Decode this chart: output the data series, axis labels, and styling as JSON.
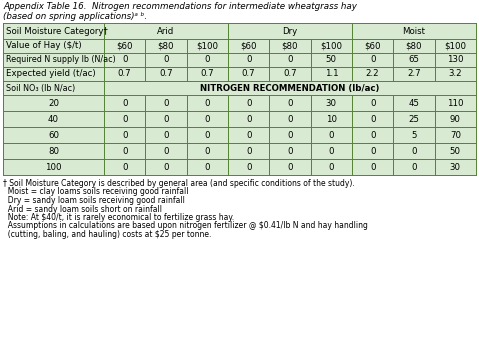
{
  "title_line1": "Appendix Table 16.  Nitrogen recommendations for intermediate wheatgrass hay",
  "title_line2": "(based on spring applications)ᵃ ᵇ.",
  "col_headers_row1": [
    "Soil Moisture Category†",
    "Arid",
    "Dry",
    "Moist"
  ],
  "col_headers_row2": [
    "Value of Hay ($/t)",
    "$60",
    "$80",
    "$100",
    "$60",
    "$80",
    "$100",
    "$60",
    "$80",
    "$100"
  ],
  "row_req_n": [
    "Required N supply lb (N/ac)",
    "0",
    "0",
    "0",
    "0",
    "0",
    "50",
    "0",
    "65",
    "130"
  ],
  "row_exp_yield": [
    "Expected yield (t/ac)",
    "0.7",
    "0.7",
    "0.7",
    "0.7",
    "0.7",
    "1.1",
    "2.2",
    "2.7",
    "3.2"
  ],
  "row_soil_no3_label": "Soil NO₃ (lb N/ac)",
  "row_nitrogen_rec": "NITROGEN RECOMMENDATION (lb/ac)",
  "data_rows": [
    [
      "20",
      "0",
      "0",
      "0",
      "0",
      "0",
      "30",
      "0",
      "45",
      "110"
    ],
    [
      "40",
      "0",
      "0",
      "0",
      "0",
      "0",
      "10",
      "0",
      "25",
      "90"
    ],
    [
      "60",
      "0",
      "0",
      "0",
      "0",
      "0",
      "0",
      "0",
      "5",
      "70"
    ],
    [
      "80",
      "0",
      "0",
      "0",
      "0",
      "0",
      "0",
      "0",
      "0",
      "50"
    ],
    [
      "100",
      "0",
      "0",
      "0",
      "0",
      "0",
      "0",
      "0",
      "0",
      "30"
    ]
  ],
  "footnote1": "† Soil Moisture Category is described by general area (and specific conditions of the study).",
  "footnote2": "  Moist = clay loams soils receiving good rainfall",
  "footnote3": "  Dry = sandy loam soils receiving good rainfall",
  "footnote4": "  Arid = sandy loam soils short on rainfall",
  "footnote5": "  Note: At $40/t, it is rarely economical to fertilize grass hay.",
  "footnote6": "  Assumptions in calculations are based upon nitrogen fertilizer @ $0.41/lb N and hay handling",
  "footnote7": "  (cutting, baling, and hauling) costs at $25 per tonne.",
  "bg_color": "#ffffff",
  "table_bg": "#d9ead3",
  "border_color": "#538135",
  "text_color": "#000000"
}
